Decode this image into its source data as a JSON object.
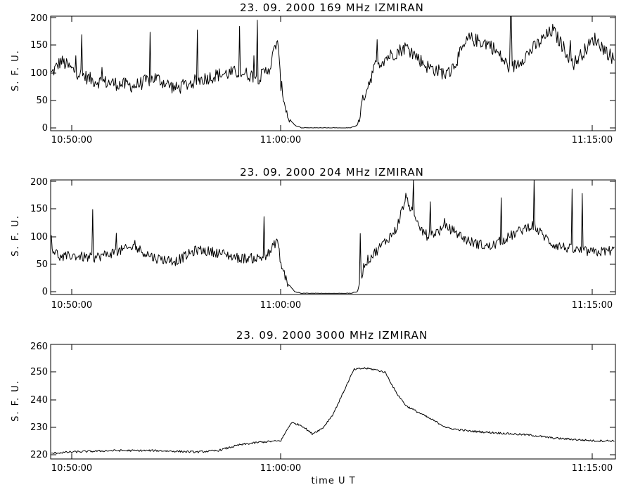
{
  "chart_data": [
    {
      "type": "line",
      "title": "23.  09.  2000    169  MHz    IZMIRAN",
      "ylabel": "S. F. U.",
      "xlabel": "",
      "x_ticklabels": [
        "10:50:00",
        "11:00:00",
        "11:15:00"
      ],
      "y_ticklabels": [
        "0",
        "50",
        "100",
        "150",
        "200"
      ],
      "xlim": [
        "10:49:00",
        "11:16:00"
      ],
      "ylim": [
        -5,
        200
      ],
      "grid": false,
      "series": [
        {
          "x": [
            "10:49:00",
            "10:49:30",
            "10:50:00",
            "10:51:00",
            "10:52:00",
            "10:53:00",
            "10:54:00",
            "10:55:00",
            "10:56:00",
            "10:57:00",
            "10:58:00",
            "10:59:00",
            "10:59:30",
            "10:59:50",
            "11:00:00",
            "11:00:20",
            "11:00:40",
            "11:01:00",
            "11:02:00",
            "11:03:00",
            "11:03:20",
            "11:03:40",
            "11:04:00",
            "11:04:30",
            "11:05:00",
            "11:06:00",
            "11:07:00",
            "11:08:00",
            "11:09:00",
            "11:10:00",
            "11:11:00",
            "11:12:00",
            "11:13:00",
            "11:14:00",
            "11:15:00",
            "11:16:00"
          ],
          "values": [
            95,
            120,
            105,
            85,
            80,
            75,
            90,
            70,
            85,
            95,
            100,
            90,
            110,
            160,
            80,
            20,
            5,
            0,
            0,
            0,
            0,
            5,
            60,
            110,
            125,
            145,
            110,
            95,
            160,
            150,
            105,
            140,
            175,
            115,
            160,
            120
          ],
          "noise": 25,
          "clip": [
            0,
            200
          ]
        }
      ]
    },
    {
      "type": "line",
      "title": "23.  09.  2000    204  MHz    IZMIRAN",
      "ylabel": "S. F. U.",
      "xlabel": "",
      "x_ticklabels": [
        "10:50:00",
        "11:00:00",
        "11:15:00"
      ],
      "y_ticklabels": [
        "0",
        "50",
        "100",
        "150",
        "200"
      ],
      "xlim": [
        "10:49:00",
        "11:16:00"
      ],
      "ylim": [
        -5,
        200
      ],
      "grid": false,
      "series": [
        {
          "x": [
            "10:49:00",
            "10:49:30",
            "10:50:00",
            "10:51:00",
            "10:52:00",
            "10:53:00",
            "10:54:00",
            "10:55:00",
            "10:56:00",
            "10:57:00",
            "10:58:00",
            "10:59:00",
            "10:59:30",
            "10:59:50",
            "11:00:00",
            "11:00:20",
            "11:00:40",
            "11:01:00",
            "11:02:00",
            "11:03:00",
            "11:03:20",
            "11:03:40",
            "11:04:00",
            "11:04:30",
            "11:05:00",
            "11:05:30",
            "11:06:00",
            "11:06:30",
            "11:07:00",
            "11:08:00",
            "11:09:00",
            "11:10:00",
            "11:11:00",
            "11:12:00",
            "11:13:00",
            "11:14:00",
            "11:15:00",
            "11:16:00"
          ],
          "values": [
            80,
            60,
            65,
            60,
            70,
            80,
            60,
            55,
            75,
            70,
            60,
            60,
            70,
            95,
            50,
            15,
            0,
            -3,
            -3,
            -3,
            -3,
            0,
            50,
            70,
            90,
            110,
            170,
            120,
            100,
            115,
            90,
            80,
            100,
            120,
            85,
            75,
            70,
            75
          ],
          "noise": 18,
          "clip": [
            -3,
            200
          ]
        }
      ]
    },
    {
      "type": "line",
      "title": "23.  09.  2000    3000  MHz    IZMIRAN",
      "ylabel": "S. F. U.",
      "xlabel": "time   U T",
      "x_ticklabels": [
        "10:50:00",
        "11:00:00",
        "11:15:00"
      ],
      "y_ticklabels": [
        "220",
        "230",
        "240",
        "250",
        "260"
      ],
      "xlim": [
        "10:49:00",
        "11:16:00"
      ],
      "ylim": [
        219,
        260
      ],
      "grid": false,
      "series": [
        {
          "x": [
            "10:49:00",
            "10:50:00",
            "10:52:00",
            "10:54:00",
            "10:56:00",
            "10:57:00",
            "10:58:00",
            "10:59:00",
            "11:00:00",
            "11:00:30",
            "11:01:00",
            "11:01:30",
            "11:02:00",
            "11:02:30",
            "11:03:00",
            "11:03:30",
            "11:04:00",
            "11:04:30",
            "11:05:00",
            "11:05:30",
            "11:06:00",
            "11:07:00",
            "11:08:00",
            "11:09:00",
            "11:10:00",
            "11:11:00",
            "11:12:00",
            "11:13:00",
            "11:14:00",
            "11:15:00",
            "11:16:00"
          ],
          "values": [
            221,
            221.5,
            222,
            222,
            221.5,
            222,
            224,
            225,
            225.5,
            232,
            231,
            228,
            230,
            235,
            243,
            251,
            251.5,
            251,
            250,
            243,
            238,
            234,
            230,
            229,
            228.5,
            228,
            227.5,
            226.5,
            226,
            225.5,
            225.5
          ],
          "noise": 0.7,
          "clip": [
            219,
            260
          ]
        }
      ]
    }
  ]
}
